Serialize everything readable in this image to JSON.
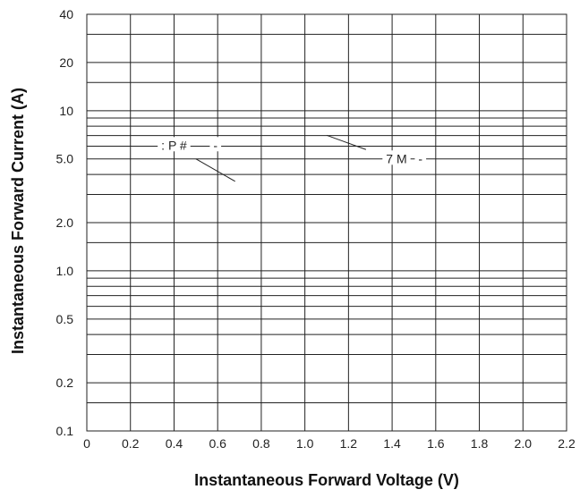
{
  "chart_data": {
    "type": "line",
    "title": "",
    "xlabel": "Instantaneous Forward Voltage (V)",
    "ylabel": "Instantaneous Forward Current (A)",
    "x_scale": "linear",
    "y_scale": "log",
    "xlim": [
      0,
      2.2
    ],
    "ylim": [
      0.1,
      40
    ],
    "x_ticks": [
      0,
      0.2,
      0.4,
      0.6,
      0.8,
      1.0,
      1.2,
      1.4,
      1.6,
      1.8,
      2.0,
      2.2
    ],
    "x_tick_labels": [
      "0",
      "0.2",
      "0.4",
      "0.6",
      "0.8",
      "1.0",
      "1.2",
      "1.4",
      "1.6",
      "1.8",
      "2.0",
      "2.2"
    ],
    "y_tick_labels": [
      {
        "value": 0.1,
        "label": "0.1"
      },
      {
        "value": 0.2,
        "label": "0.2"
      },
      {
        "value": 0.5,
        "label": "0.5"
      },
      {
        "value": 1.0,
        "label": "1.0"
      },
      {
        "value": 2.0,
        "label": "2.0"
      },
      {
        "value": 5.0,
        "label": "5.0"
      },
      {
        "value": 10,
        "label": "10"
      },
      {
        "value": 20,
        "label": "20"
      },
      {
        "value": 40,
        "label": "40"
      }
    ],
    "y_grid": [
      0.1,
      0.15,
      0.2,
      0.3,
      0.4,
      0.5,
      0.6,
      0.7,
      0.8,
      0.9,
      1.0,
      1.5,
      2,
      3,
      4,
      5,
      6,
      7,
      8,
      9,
      10,
      15,
      20,
      30,
      40
    ],
    "grid": true,
    "series": [],
    "annotations": [
      {
        "text": ": P #",
        "x": 0.4,
        "y": 6.1,
        "leader_from": [
          0.5,
          5.0
        ],
        "leader_to": [
          0.68,
          3.62
        ]
      },
      {
        "text": "-",
        "x": 0.59,
        "y": 6.1
      },
      {
        "text": "7 M",
        "x": 1.42,
        "y": 5.03,
        "leader_from": [
          1.28,
          5.72
        ],
        "leader_to": [
          1.1,
          7.02
        ]
      },
      {
        "text": "-",
        "x": 1.53,
        "y": 5.03
      }
    ]
  }
}
